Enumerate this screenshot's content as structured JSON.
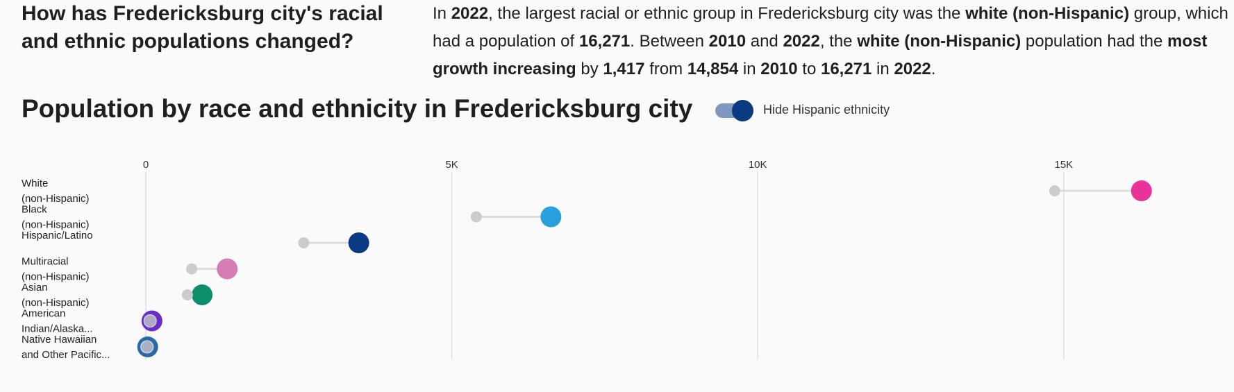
{
  "header": {
    "question": "How has Fredericksburg city's racial and ethnic populations changed?"
  },
  "summary": {
    "segments": [
      {
        "t": "In ",
        "b": false
      },
      {
        "t": "2022",
        "b": true
      },
      {
        "t": ", the largest racial or ethnic group in Fredericksburg city was the ",
        "b": false
      },
      {
        "t": "white (non-Hispanic)",
        "b": true
      },
      {
        "t": " group, which had a population of ",
        "b": false
      },
      {
        "t": "16,271",
        "b": true
      },
      {
        "t": ". Between ",
        "b": false
      },
      {
        "t": "2010",
        "b": true
      },
      {
        "t": " and ",
        "b": false
      },
      {
        "t": "2022",
        "b": true
      },
      {
        "t": ", the ",
        "b": false
      },
      {
        "t": "white (non-Hispanic)",
        "b": true
      },
      {
        "t": " population had the ",
        "b": false
      },
      {
        "t": "most growth increasing",
        "b": true
      },
      {
        "t": " by ",
        "b": false
      },
      {
        "t": "1,417",
        "b": true
      },
      {
        "t": " from ",
        "b": false
      },
      {
        "t": "14,854",
        "b": true
      },
      {
        "t": " in ",
        "b": false
      },
      {
        "t": "2010",
        "b": true
      },
      {
        "t": " to ",
        "b": false
      },
      {
        "t": "16,271",
        "b": true
      },
      {
        "t": " in ",
        "b": false
      },
      {
        "t": "2022",
        "b": true
      },
      {
        "t": ".",
        "b": false
      }
    ]
  },
  "toggle": {
    "label": "Hide Hispanic ethnicity",
    "on": true,
    "track_color": "#7f97bf",
    "knob_color": "#0a3a82"
  },
  "chart_data": {
    "type": "dumbbell",
    "title": "Population by race and ethnicity in Fredericksburg city",
    "xlim": [
      0,
      17000
    ],
    "xticks": [
      {
        "value": 0,
        "label": "0"
      },
      {
        "value": 5000,
        "label": "5K"
      },
      {
        "value": 10000,
        "label": "10K"
      },
      {
        "value": 15000,
        "label": "15K"
      }
    ],
    "grid": true,
    "start_color": "#cccccc",
    "categories": [
      {
        "label_lines": [
          "White",
          "(non-Hispanic)"
        ],
        "start": 14854,
        "end": 16271,
        "color": "#e8339a"
      },
      {
        "label_lines": [
          "Black",
          "(non-Hispanic)"
        ],
        "start": 5400,
        "end": 6620,
        "color": "#2a9fdd"
      },
      {
        "label_lines": [
          "Hispanic/Latino"
        ],
        "start": 2580,
        "end": 3480,
        "color": "#0a3a82"
      },
      {
        "label_lines": [
          "Multiracial",
          "(non-Hispanic)"
        ],
        "start": 750,
        "end": 1330,
        "color": "#d77bb3"
      },
      {
        "label_lines": [
          "Asian",
          "(non-Hispanic)"
        ],
        "start": 680,
        "end": 920,
        "color": "#0e8f6c"
      },
      {
        "label_lines": [
          "American",
          "Indian/Alaska..."
        ],
        "start": 70,
        "end": 100,
        "color": "#6b2ec4"
      },
      {
        "label_lines": [
          "Native Hawaiian",
          "and Other Pacific..."
        ],
        "start": 20,
        "end": 30,
        "color": "#2a6aa6"
      }
    ]
  }
}
